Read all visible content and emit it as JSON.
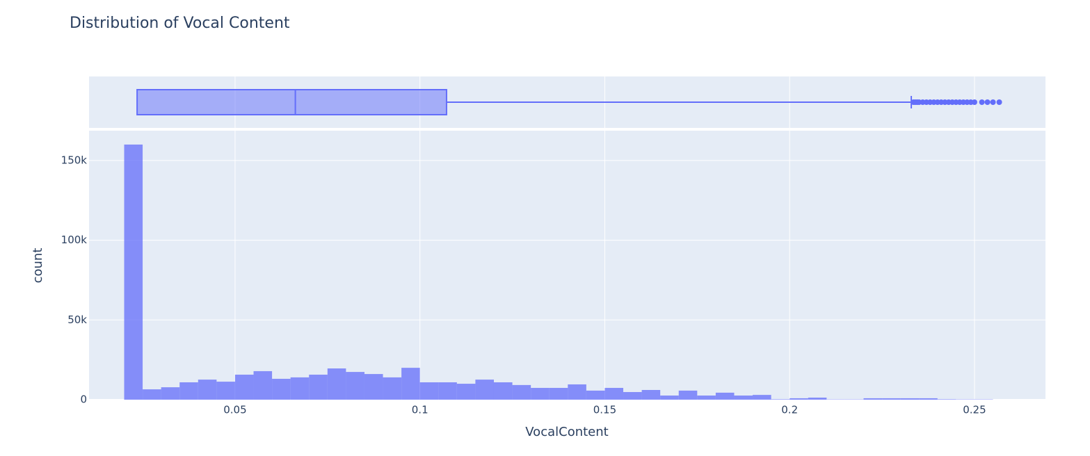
{
  "chart_data": {
    "type": "histogram",
    "title": "Distribution of Vocal Content",
    "x_label": "VocalContent",
    "y_label": "count",
    "color": "#636efa",
    "bins": [
      0.02,
      0.025,
      0.03,
      0.035,
      0.04,
      0.045,
      0.05,
      0.055,
      0.06,
      0.065,
      0.07,
      0.075,
      0.08,
      0.085,
      0.09,
      0.095,
      0.1,
      0.105,
      0.11,
      0.115,
      0.12,
      0.125,
      0.13,
      0.135,
      0.14,
      0.145,
      0.15,
      0.155,
      0.16,
      0.165,
      0.17,
      0.175,
      0.18,
      0.185,
      0.19,
      0.195,
      0.2,
      0.205,
      0.21,
      0.215,
      0.22,
      0.225,
      0.23,
      0.235,
      0.24,
      0.245,
      0.25,
      0.255
    ],
    "values": [
      160000,
      6500,
      7800,
      10900,
      12600,
      11300,
      15700,
      17900,
      13100,
      14000,
      15700,
      19600,
      17400,
      16100,
      14000,
      20000,
      10900,
      10900,
      10000,
      12600,
      10900,
      9200,
      7400,
      7400,
      9600,
      5700,
      7400,
      4800,
      6100,
      2600,
      5700,
      2600,
      4400,
      2600,
      3000,
      300,
      900,
      1300,
      200,
      200,
      900,
      900,
      900,
      900,
      300,
      200,
      200
    ],
    "xlim": [
      0.0105,
      0.2692
    ],
    "xticks": [
      0.05,
      0.1,
      0.15,
      0.2,
      0.25
    ],
    "ylim": [
      0,
      168700
    ],
    "yticks": [
      0,
      {
        "value": 50000,
        "label": "50k"
      },
      {
        "value": 100000,
        "label": "100k"
      },
      {
        "value": 150000,
        "label": "150k"
      }
    ],
    "grid": true,
    "box": {
      "lowerfence": 0.0235,
      "q1": 0.0235,
      "median": 0.0663,
      "q3": 0.1072,
      "upperfence": 0.2329,
      "outliers": [
        0.2335,
        0.234,
        0.2345,
        0.235,
        0.236,
        0.237,
        0.238,
        0.239,
        0.24,
        0.241,
        0.242,
        0.243,
        0.244,
        0.245,
        0.246,
        0.247,
        0.248,
        0.249,
        0.25,
        0.252,
        0.2535,
        0.255,
        0.2567
      ]
    }
  }
}
